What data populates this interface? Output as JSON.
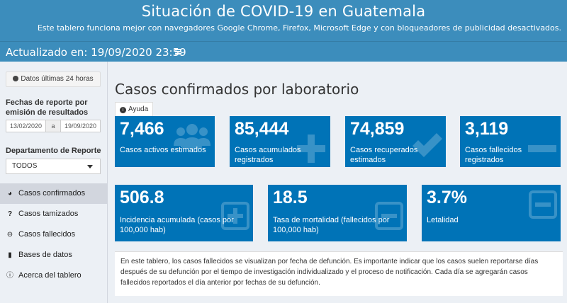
{
  "header": {
    "title": "Situación de COVID-19 en Guatemala",
    "subtitle": "Este tablero funciona mejor con navegadores Google Chrome, Firefox, Microsoft Edge y con bloqueadores de publicidad desactivados.",
    "updated": "Actualizado en: 19/09/2020 23:59"
  },
  "sidebar": {
    "btn_24h": "Datos últimas 24 horas",
    "fechas_label": "Fechas de reporte por emisión de resultados",
    "date_from": "13/02/2020",
    "date_sep": "a",
    "date_to": "19/09/2020",
    "depto_label": "Departamento de Reporte",
    "depto_value": "TODOS",
    "menu": [
      {
        "label": "Casos confirmados",
        "icon": "tachometer-icon"
      },
      {
        "label": "Casos tamizados",
        "icon": "question-icon"
      },
      {
        "label": "Casos fallecidos",
        "icon": "minus-circle-icon"
      },
      {
        "label": "Bases de datos",
        "icon": "file-icon"
      },
      {
        "label": "Acerca del tablero",
        "icon": "info-circle-icon"
      }
    ]
  },
  "main": {
    "title": "Casos confirmados por laboratorio",
    "help_label": "Ayuda",
    "tiles_row1": [
      {
        "value": "7,466",
        "label": "Casos activos estimados",
        "icon": "users-icon"
      },
      {
        "value": "85,444",
        "label": "Casos acumulados registrados",
        "icon": "plus-icon"
      },
      {
        "value": "74,859",
        "label": "Casos recuperados estimados",
        "icon": "check-icon"
      },
      {
        "value": "3,119",
        "label": "Casos fallecidos registrados",
        "icon": "minus-icon"
      }
    ],
    "tiles_row2": [
      {
        "value": "506.8",
        "label": "Incidencia acumulada (casos por 100,000 hab)",
        "icon": "plus-square-icon"
      },
      {
        "value": "18.5",
        "label": "Tasa de mortalidad (fallecidos por 100,000 hab)",
        "icon": "minus-square-icon"
      },
      {
        "value": "3.7%",
        "label": "Letalidad",
        "icon": "minus-square-icon"
      }
    ],
    "note": "En este tablero, los casos fallecidos se visualizan por fecha de defunción. Es importante indicar que los casos suelen reportarse días después de su defunción por el tiempo de investigación individualizado y el proceso de notificación. Cada día se agregarán casos fallecidos reportados el día anterior por fechas de su defunción."
  },
  "colors": {
    "header": "#3c8dbc",
    "tile": "#0073b7",
    "background": "#ecf0f5"
  }
}
